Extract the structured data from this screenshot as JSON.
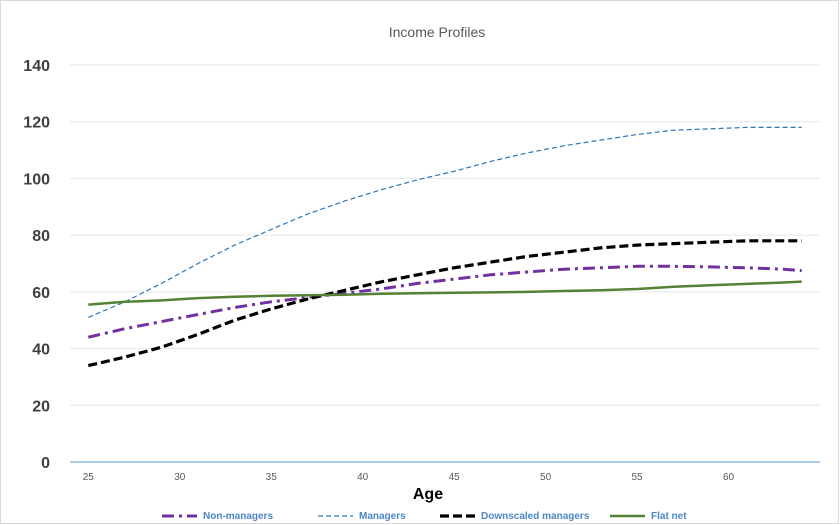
{
  "chart_data": {
    "type": "line",
    "title": "Income Profiles",
    "xlabel": "Age",
    "ylabel": "",
    "xlim": [
      24,
      65
    ],
    "ylim": [
      0,
      140
    ],
    "yticks": [
      "0",
      "20",
      "40",
      "60",
      "80",
      "100",
      "120",
      "140"
    ],
    "xticks": [
      "25",
      "30",
      "35",
      "40",
      "45",
      "50",
      "55",
      "60"
    ],
    "grid": "horizontal",
    "legend_position": "bottom",
    "x": [
      25,
      27,
      29,
      31,
      33,
      35,
      37,
      39,
      41,
      43,
      45,
      47,
      49,
      51,
      53,
      55,
      57,
      59,
      61,
      63,
      64
    ],
    "series": [
      {
        "name": "Non-managers",
        "color": "#7030a0",
        "style": "dashdot",
        "values": [
          44,
          47,
          49.5,
          52,
          54.5,
          56.5,
          58,
          59.5,
          61,
          63,
          64.5,
          66,
          67,
          68,
          68.5,
          69,
          69,
          68.8,
          68.5,
          68,
          67.5
        ]
      },
      {
        "name": "Managers",
        "color": "#2e75b6",
        "style": "dashed",
        "values": [
          51,
          56.5,
          63,
          70,
          76.5,
          82,
          87.5,
          92,
          96,
          99.5,
          102.5,
          106,
          109,
          111.5,
          113.5,
          115.5,
          117,
          117.5,
          118,
          118,
          118
        ]
      },
      {
        "name": "Downscaled managers",
        "color": "#000000",
        "style": "dashed-bold",
        "values": [
          34,
          37,
          40.5,
          45,
          50,
          54,
          57.5,
          60.5,
          63.5,
          66,
          68.5,
          70.5,
          72.5,
          74,
          75.5,
          76.5,
          77,
          77.5,
          78,
          78,
          78
        ]
      },
      {
        "name": "Flat net",
        "color": "#548235",
        "style": "solid",
        "values": [
          55.5,
          56.5,
          57,
          57.8,
          58.3,
          58.6,
          58.8,
          59,
          59.3,
          59.5,
          59.7,
          59.8,
          60,
          60.3,
          60.6,
          61,
          61.8,
          62.3,
          62.8,
          63.3,
          63.6
        ]
      }
    ]
  }
}
